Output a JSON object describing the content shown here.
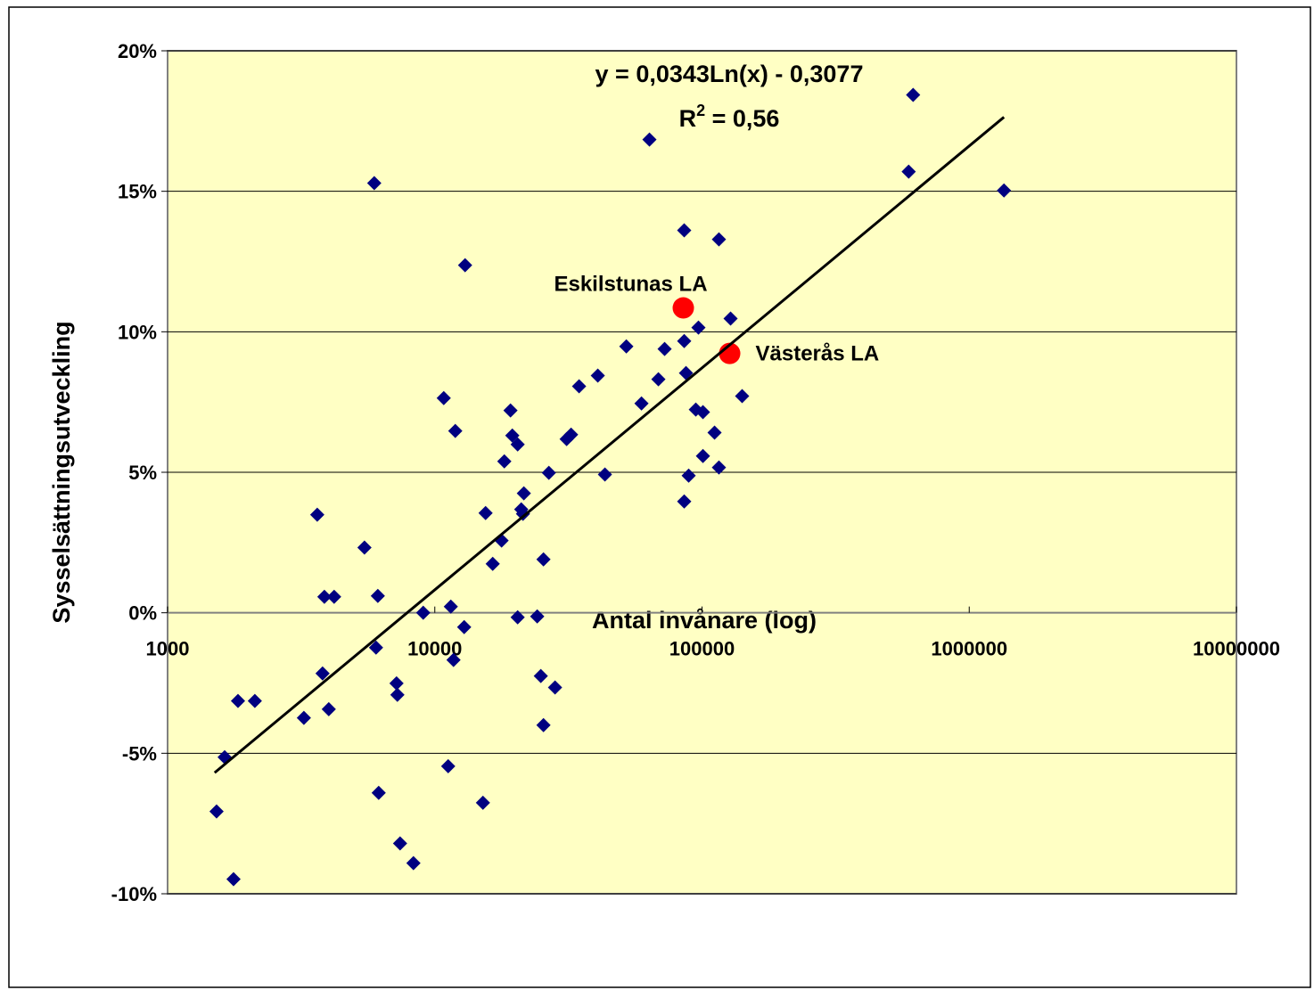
{
  "chart_data": {
    "type": "scatter",
    "xlabel": "Antal invånare (log)",
    "ylabel": "Sysselsättningsutveckling",
    "xlog": true,
    "xlim": [
      1000,
      10000000
    ],
    "xticks": [
      1000,
      10000,
      100000,
      1000000,
      10000000
    ],
    "ylim": [
      -10,
      20
    ],
    "yticks": [
      {
        "value": -10,
        "label": "-10%"
      },
      {
        "value": -5,
        "label": "-5%"
      },
      {
        "value": 0,
        "label": "0%"
      },
      {
        "value": 5,
        "label": "5%"
      },
      {
        "value": 10,
        "label": "10%"
      },
      {
        "value": 15,
        "label": "15%"
      },
      {
        "value": 20,
        "label": "20%"
      }
    ],
    "grid": true,
    "annotations": {
      "equation": "y = 0,0343Ln(x) - 0,3077",
      "r2": {
        "base": "R",
        "sup": "2",
        "rest": " = 0,56"
      }
    },
    "series": [
      {
        "color": "#000080",
        "marker": "diamond",
        "x": [
          1525,
          1635,
          1765,
          1834,
          2121,
          3236,
          3631,
          3802,
          3861,
          4011,
          4200,
          5455,
          5934,
          6026,
          6120,
          6166,
          7191,
          7244,
          7413,
          8318,
          9050,
          10800,
          11220,
          11480,
          11750,
          11930,
          12880,
          12980,
          15140,
          15490,
          16470,
          17780,
          18200,
          19200,
          19500,
          20420,
          20420,
          21060,
          21380,
          21540,
          24170,
          24930,
          25510,
          25510,
          26720,
          28180,
          31140,
          32360,
          34670,
          40740,
          43320,
          52090,
          59350,
          63580,
          68660,
          72440,
          85770,
          85770,
          85770,
          87100,
          89130,
          94780,
          96970,
          100800,
          100800,
          111400,
          115700,
          115700,
          127900,
          141300,
          593500,
          616600,
          1349000
        ],
        "values": [
          -7.07,
          -5.14,
          -9.48,
          -3.14,
          -3.14,
          -3.74,
          3.49,
          -2.16,
          0.57,
          -3.43,
          0.57,
          2.32,
          15.29,
          -1.24,
          0.6,
          -6.41,
          -2.51,
          -2.92,
          -8.21,
          -8.91,
          0,
          7.64,
          -5.46,
          0.22,
          -1.68,
          6.47,
          -0.51,
          12.37,
          -6.76,
          3.55,
          1.74,
          2.57,
          5.39,
          7.2,
          6.31,
          5.99,
          -0.16,
          3.68,
          3.52,
          4.25,
          -0.13,
          -2.25,
          1.9,
          -4.0,
          4.98,
          -2.66,
          6.18,
          6.34,
          8.06,
          8.44,
          4.92,
          9.48,
          7.45,
          16.84,
          8.31,
          9.39,
          13.61,
          9.67,
          3.96,
          8.53,
          4.88,
          7.23,
          10.15,
          7.14,
          5.58,
          6.41,
          13.29,
          5.17,
          10.47,
          7.71,
          15.7,
          18.43,
          15.03
        ]
      },
      {
        "color": "#ff0000",
        "marker": "circle",
        "x": [
          85110,
          126900
        ],
        "values": [
          10.85,
          9.23
        ],
        "labels": [
          "Eskilstunas LA",
          "Västerås LA"
        ]
      },
      {
        "color": "#000000",
        "marker": "line",
        "x": [
          1500,
          1349000
        ],
        "values": [
          -5.69,
          17.64
        ]
      }
    ]
  }
}
